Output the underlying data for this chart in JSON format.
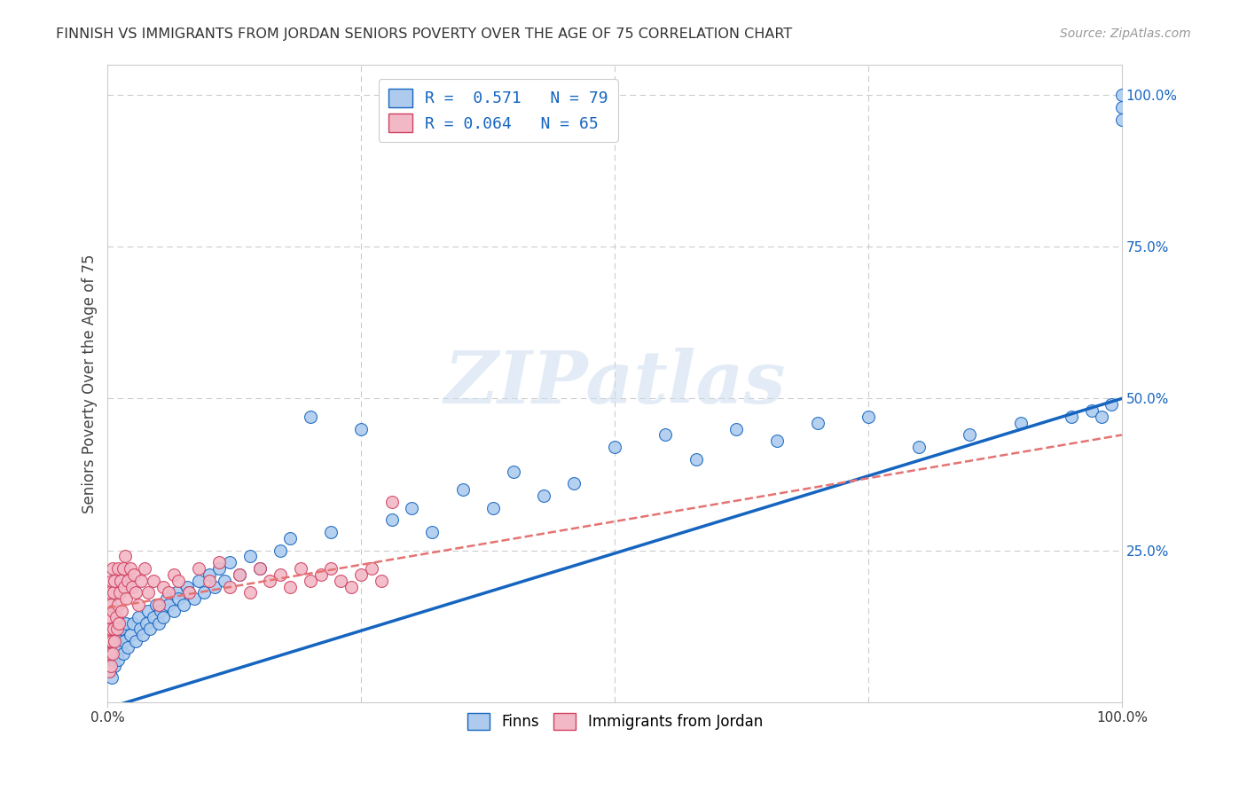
{
  "title": "FINNISH VS IMMIGRANTS FROM JORDAN SENIORS POVERTY OVER THE AGE OF 75 CORRELATION CHART",
  "source": "Source: ZipAtlas.com",
  "ylabel": "Seniors Poverty Over the Age of 75",
  "finn_R": 0.571,
  "finn_N": 79,
  "jordan_R": 0.064,
  "jordan_N": 65,
  "finn_color": "#aecbee",
  "jordan_color": "#f2b8c6",
  "finn_line_color": "#1565c0",
  "jordan_line_color": "#e57373",
  "background_color": "#ffffff",
  "grid_color": "#cccccc",
  "watermark_text": "ZIPatlas",
  "finn_x": [
    0.002,
    0.003,
    0.004,
    0.005,
    0.006,
    0.007,
    0.008,
    0.009,
    0.01,
    0.011,
    0.012,
    0.013,
    0.015,
    0.016,
    0.018,
    0.02,
    0.022,
    0.025,
    0.028,
    0.03,
    0.032,
    0.035,
    0.038,
    0.04,
    0.042,
    0.045,
    0.048,
    0.05,
    0.052,
    0.055,
    0.058,
    0.06,
    0.065,
    0.068,
    0.07,
    0.075,
    0.078,
    0.08,
    0.085,
    0.09,
    0.095,
    0.1,
    0.105,
    0.11,
    0.115,
    0.12,
    0.13,
    0.14,
    0.15,
    0.17,
    0.18,
    0.2,
    0.22,
    0.25,
    0.28,
    0.3,
    0.32,
    0.35,
    0.38,
    0.4,
    0.43,
    0.46,
    0.5,
    0.55,
    0.58,
    0.62,
    0.66,
    0.7,
    0.75,
    0.8,
    0.85,
    0.9,
    0.95,
    0.97,
    0.98,
    0.99,
    1.0,
    1.0,
    1.0
  ],
  "finn_y": [
    0.05,
    0.08,
    0.04,
    0.07,
    0.09,
    0.06,
    0.1,
    0.08,
    0.07,
    0.11,
    0.09,
    0.12,
    0.08,
    0.1,
    0.13,
    0.09,
    0.11,
    0.13,
    0.1,
    0.14,
    0.12,
    0.11,
    0.13,
    0.15,
    0.12,
    0.14,
    0.16,
    0.13,
    0.15,
    0.14,
    0.17,
    0.16,
    0.15,
    0.18,
    0.17,
    0.16,
    0.19,
    0.18,
    0.17,
    0.2,
    0.18,
    0.21,
    0.19,
    0.22,
    0.2,
    0.23,
    0.21,
    0.24,
    0.22,
    0.25,
    0.27,
    0.47,
    0.28,
    0.45,
    0.3,
    0.32,
    0.28,
    0.35,
    0.32,
    0.38,
    0.34,
    0.36,
    0.42,
    0.44,
    0.4,
    0.45,
    0.43,
    0.46,
    0.47,
    0.42,
    0.44,
    0.46,
    0.47,
    0.48,
    0.47,
    0.49,
    1.0,
    0.98,
    0.96
  ],
  "jordan_x": [
    0.001,
    0.001,
    0.002,
    0.002,
    0.002,
    0.003,
    0.003,
    0.003,
    0.004,
    0.004,
    0.005,
    0.005,
    0.005,
    0.006,
    0.006,
    0.007,
    0.007,
    0.008,
    0.009,
    0.01,
    0.01,
    0.011,
    0.012,
    0.013,
    0.014,
    0.015,
    0.016,
    0.017,
    0.018,
    0.02,
    0.022,
    0.024,
    0.026,
    0.028,
    0.03,
    0.033,
    0.036,
    0.04,
    0.045,
    0.05,
    0.055,
    0.06,
    0.065,
    0.07,
    0.08,
    0.09,
    0.1,
    0.11,
    0.12,
    0.13,
    0.14,
    0.15,
    0.16,
    0.17,
    0.18,
    0.19,
    0.2,
    0.21,
    0.22,
    0.23,
    0.24,
    0.25,
    0.26,
    0.27,
    0.28
  ],
  "jordan_y": [
    0.05,
    0.1,
    0.08,
    0.14,
    0.18,
    0.06,
    0.12,
    0.16,
    0.1,
    0.2,
    0.08,
    0.15,
    0.22,
    0.12,
    0.18,
    0.1,
    0.2,
    0.14,
    0.12,
    0.16,
    0.22,
    0.13,
    0.18,
    0.2,
    0.15,
    0.22,
    0.19,
    0.24,
    0.17,
    0.2,
    0.22,
    0.19,
    0.21,
    0.18,
    0.16,
    0.2,
    0.22,
    0.18,
    0.2,
    0.16,
    0.19,
    0.18,
    0.21,
    0.2,
    0.18,
    0.22,
    0.2,
    0.23,
    0.19,
    0.21,
    0.18,
    0.22,
    0.2,
    0.21,
    0.19,
    0.22,
    0.2,
    0.21,
    0.22,
    0.2,
    0.19,
    0.21,
    0.22,
    0.2,
    0.33
  ],
  "xlim": [
    0.0,
    1.0
  ],
  "ylim": [
    0.0,
    1.05
  ],
  "finn_line_x0": 0.0,
  "finn_line_y0": -0.01,
  "finn_line_x1": 1.0,
  "finn_line_y1": 0.5,
  "jordan_line_x0": 0.0,
  "jordan_line_y0": 0.155,
  "jordan_line_x1": 1.0,
  "jordan_line_y1": 0.44
}
